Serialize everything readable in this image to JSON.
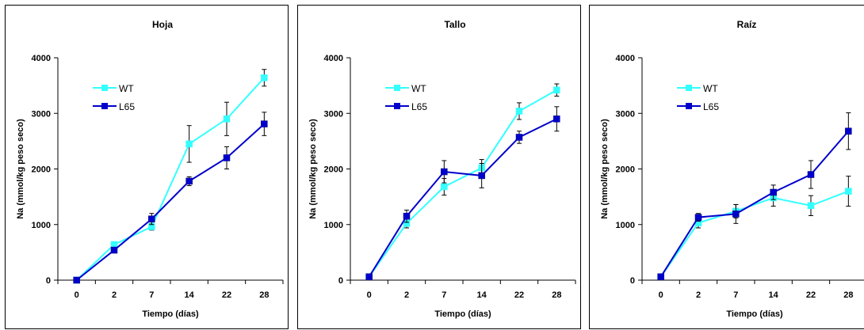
{
  "chart_data": [
    {
      "type": "line",
      "title": "Hoja",
      "xlabel": "Tiempo (días)",
      "ylabel": "Na (mmol/kg peso seco)",
      "categories": [
        "0",
        "2",
        "7",
        "14",
        "22",
        "28"
      ],
      "ylim": [
        0,
        4000
      ],
      "yticks": [
        "0",
        "1000",
        "2000",
        "3000",
        "4000"
      ],
      "grid": false,
      "legend": "top-left",
      "series": [
        {
          "name": "WT",
          "color": "#33ffff",
          "values": [
            0,
            640,
            960,
            2450,
            2900,
            3640
          ],
          "errors": [
            0,
            50,
            60,
            330,
            300,
            150
          ]
        },
        {
          "name": "L65",
          "color": "#0000cc",
          "values": [
            0,
            540,
            1100,
            1780,
            2200,
            2810
          ],
          "errors": [
            0,
            40,
            100,
            80,
            200,
            210
          ]
        }
      ]
    },
    {
      "type": "line",
      "title": "Tallo",
      "xlabel": "Tiempo (días)",
      "ylabel": "Na (mmol/kg peso seco)",
      "categories": [
        "0",
        "2",
        "7",
        "14",
        "22",
        "28"
      ],
      "ylim": [
        0,
        4000
      ],
      "yticks": [
        "0",
        "1000",
        "2000",
        "3000",
        "4000"
      ],
      "grid": false,
      "legend": "top-left",
      "series": [
        {
          "name": "WT",
          "color": "#33ffff",
          "values": [
            60,
            1020,
            1680,
            2020,
            3040,
            3420
          ],
          "errors": [
            0,
            80,
            150,
            150,
            150,
            110
          ]
        },
        {
          "name": "L65",
          "color": "#0000cc",
          "values": [
            60,
            1150,
            1950,
            1880,
            2570,
            2900
          ],
          "errors": [
            0,
            110,
            200,
            220,
            110,
            220
          ]
        }
      ]
    },
    {
      "type": "line",
      "title": "Raíz",
      "xlabel": "Tiempo (días)",
      "ylabel": "Na (mmol/kg peso seco)",
      "categories": [
        "0",
        "2",
        "7",
        "14",
        "22",
        "28"
      ],
      "ylim": [
        0,
        4000
      ],
      "yticks": [
        "0",
        "1000",
        "2000",
        "3000",
        "4000"
      ],
      "grid": false,
      "legend": "top-left",
      "series": [
        {
          "name": "WT",
          "color": "#33ffff",
          "values": [
            60,
            1030,
            1240,
            1480,
            1340,
            1600
          ],
          "errors": [
            0,
            90,
            120,
            150,
            180,
            270
          ]
        },
        {
          "name": "L65",
          "color": "#0000cc",
          "values": [
            60,
            1130,
            1190,
            1580,
            1900,
            2680
          ],
          "errors": [
            0,
            70,
            170,
            130,
            250,
            330
          ]
        }
      ]
    }
  ]
}
